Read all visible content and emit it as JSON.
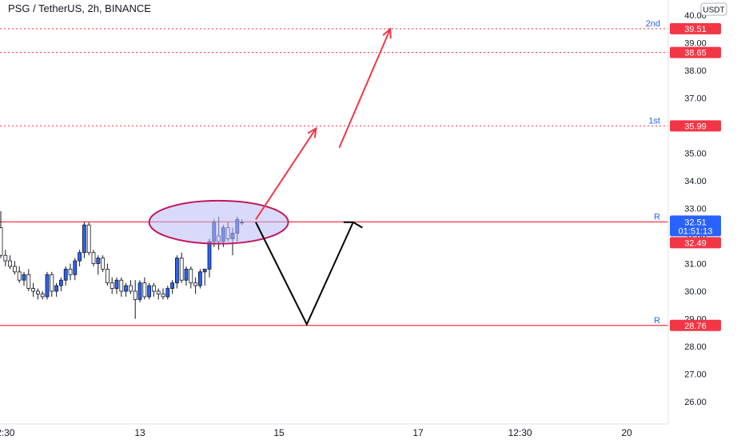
{
  "header": {
    "title": "PSG / TetherUS, 2h, BINANCE"
  },
  "currency_badge": "USDT",
  "colors": {
    "up": "#2962ff",
    "down": "#ffffff",
    "wick": "#131722",
    "level": "#f23645",
    "level_text": "#2962ff",
    "arrow_up": "#f23645",
    "arrow_path": "#000000",
    "ellipse_fill": "#b9b9f5",
    "ellipse_stroke": "#c2185b",
    "axis_text": "#131722"
  },
  "chart_data": {
    "type": "candlestick",
    "title": "PSG / TetherUS, 2h, BINANCE",
    "yaxis_unit": "USDT",
    "ylim": [
      25.3,
      40.3
    ],
    "yticks": [
      "26.00",
      "27.00",
      "28.00",
      "29.00",
      "30.00",
      "31.00",
      "32.00",
      "33.00",
      "34.00",
      "35.00",
      "37.00",
      "38.00",
      "39.00",
      "40.00"
    ],
    "xlim": [
      -7,
      164
    ],
    "xticks": [
      {
        "label": "2:30",
        "x": -6
      },
      {
        "label": "13",
        "x": 23
      },
      {
        "label": "15",
        "x": 53
      },
      {
        "label": "17",
        "x": 83
      },
      {
        "label": "12:30",
        "x": 105
      },
      {
        "label": "20",
        "x": 128
      }
    ],
    "candles": [
      [
        -7,
        32.3,
        32.9,
        31.2,
        31.3
      ],
      [
        -6,
        31.3,
        31.5,
        30.9,
        31.1
      ],
      [
        -5,
        31.1,
        31.3,
        30.8,
        30.9
      ],
      [
        -4,
        30.9,
        31.1,
        30.6,
        30.7
      ],
      [
        -3,
        30.7,
        30.9,
        30.3,
        30.4
      ],
      [
        -2,
        30.4,
        30.7,
        30.2,
        30.6
      ],
      [
        -1,
        30.6,
        30.8,
        30.0,
        30.1
      ],
      [
        0,
        30.1,
        30.3,
        29.8,
        30.0
      ],
      [
        1,
        30.0,
        30.1,
        29.7,
        29.9
      ],
      [
        2,
        29.9,
        30.0,
        29.7,
        29.8
      ],
      [
        3,
        29.8,
        30.7,
        29.7,
        30.6
      ],
      [
        4,
        30.6,
        30.7,
        29.8,
        30.0
      ],
      [
        5,
        30.0,
        30.3,
        29.8,
        30.2
      ],
      [
        6,
        30.2,
        30.5,
        30.0,
        30.4
      ],
      [
        7,
        30.4,
        30.9,
        30.2,
        30.8
      ],
      [
        8,
        30.8,
        31.0,
        30.4,
        30.6
      ],
      [
        9,
        30.6,
        31.2,
        30.4,
        31.1
      ],
      [
        10,
        31.1,
        31.5,
        30.9,
        31.4
      ],
      [
        11,
        31.4,
        32.5,
        31.2,
        32.4
      ],
      [
        12,
        32.4,
        32.5,
        31.3,
        31.4
      ],
      [
        13,
        31.4,
        31.5,
        30.9,
        31.0
      ],
      [
        14,
        31.0,
        31.3,
        30.6,
        31.2
      ],
      [
        15,
        31.2,
        31.3,
        30.7,
        30.8
      ],
      [
        16,
        30.8,
        31.0,
        30.2,
        30.3
      ],
      [
        17,
        30.3,
        30.5,
        29.9,
        30.1
      ],
      [
        18,
        30.1,
        30.5,
        29.9,
        30.4
      ],
      [
        19,
        30.4,
        30.5,
        29.8,
        30.0
      ],
      [
        20,
        30.0,
        30.3,
        29.8,
        30.2
      ],
      [
        21,
        30.2,
        30.4,
        29.9,
        30.0
      ],
      [
        22,
        30.0,
        30.4,
        29.0,
        29.7
      ],
      [
        23,
        29.7,
        30.4,
        29.6,
        30.3
      ],
      [
        24,
        30.3,
        30.5,
        29.7,
        29.8
      ],
      [
        25,
        29.8,
        30.3,
        29.7,
        30.2
      ],
      [
        26,
        30.2,
        30.3,
        29.8,
        30.0
      ],
      [
        27,
        30.0,
        30.1,
        29.7,
        29.9
      ],
      [
        28,
        29.9,
        30.1,
        29.7,
        29.8
      ],
      [
        29,
        29.8,
        30.2,
        29.7,
        30.1
      ],
      [
        30,
        30.1,
        30.4,
        29.9,
        30.3
      ],
      [
        31,
        30.3,
        31.3,
        30.1,
        31.2
      ],
      [
        32,
        31.2,
        31.4,
        30.3,
        30.4
      ],
      [
        33,
        30.4,
        30.9,
        30.2,
        30.8
      ],
      [
        34,
        30.8,
        30.9,
        30.1,
        30.3
      ],
      [
        35,
        30.3,
        30.5,
        29.9,
        30.2
      ],
      [
        36,
        30.2,
        30.8,
        30.1,
        30.7
      ],
      [
        37,
        30.7,
        30.8,
        30.2,
        30.8
      ],
      [
        38,
        30.8,
        31.9,
        30.5,
        31.8
      ],
      [
        39,
        31.8,
        32.6,
        31.6,
        32.5
      ],
      [
        40,
        32.0,
        32.7,
        31.5,
        31.8
      ],
      [
        41,
        31.8,
        32.4,
        31.6,
        32.3
      ],
      [
        42,
        32.3,
        32.5,
        31.8,
        31.9
      ],
      [
        43,
        31.9,
        32.3,
        31.3,
        32.1
      ],
      [
        44,
        32.1,
        32.7,
        31.8,
        32.6
      ],
      [
        45,
        32.5,
        32.6,
        32.4,
        32.5
      ]
    ],
    "levels": [
      {
        "label": "2nd",
        "value": 39.51
      },
      {
        "label": "",
        "value": 38.65
      },
      {
        "label": "1st",
        "value": 35.99
      },
      {
        "label": "R",
        "value": 32.51
      },
      {
        "label": "R",
        "value": 28.76
      }
    ],
    "last_price": {
      "value": "32.51",
      "countdown": "01:51:13"
    },
    "second_tag": "32.49",
    "annotations": {
      "ellipse": {
        "cx": 40,
        "cy": 32.5,
        "rx": 15,
        "ry": 0.78
      },
      "arrow_up_1": [
        [
          48,
          32.6
        ],
        [
          61,
          35.9
        ]
      ],
      "arrow_up_2": [
        [
          66,
          35.2
        ],
        [
          77,
          39.5
        ]
      ],
      "projection_path": [
        [
          48,
          32.5
        ],
        [
          59,
          28.8
        ],
        [
          69,
          32.5
        ]
      ],
      "projection_tail": [
        [
          69,
          32.5
        ],
        [
          71,
          32.3
        ]
      ]
    }
  }
}
